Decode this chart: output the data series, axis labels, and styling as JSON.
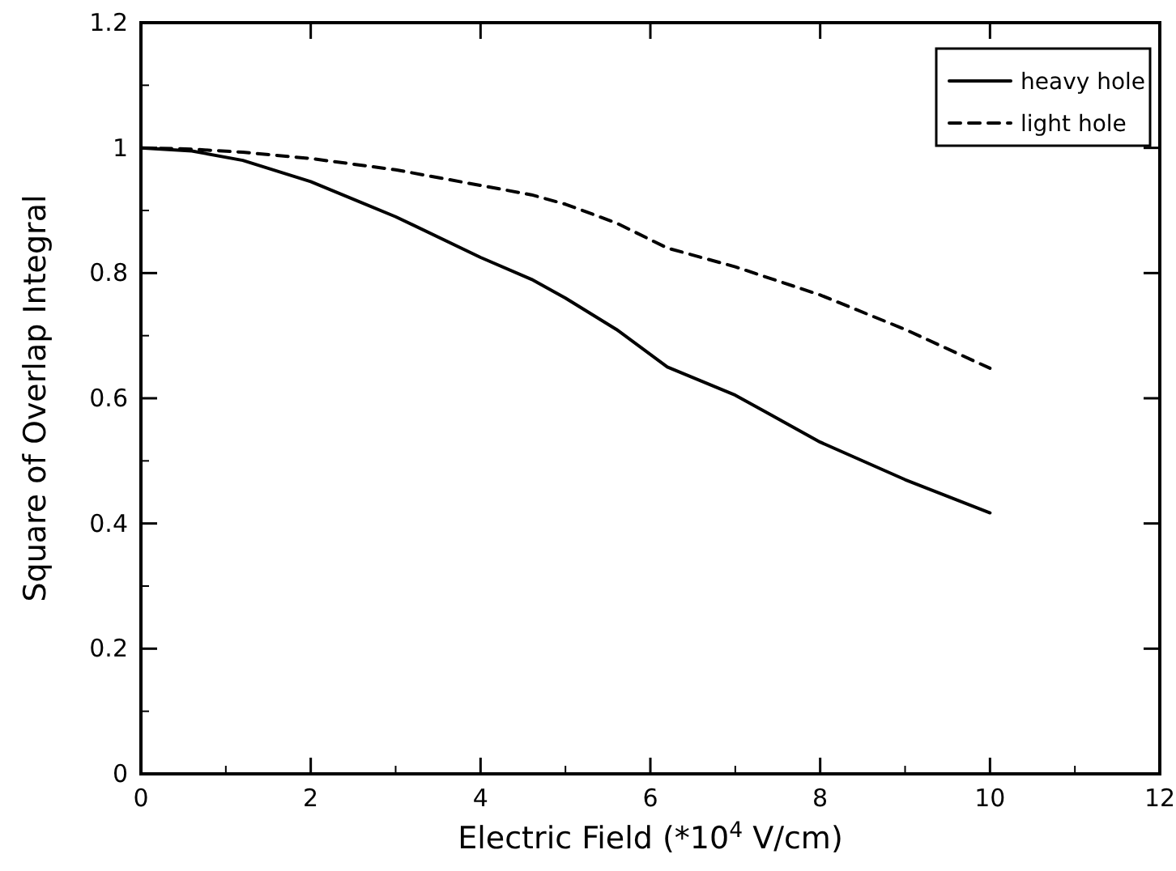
{
  "chart_data": {
    "type": "line",
    "xlabel": "Electric Field (*10$^{4}$ V/cm)",
    "ylabel": "Square of Overlap Integral",
    "xlim": [
      0,
      12
    ],
    "xticks": [
      0,
      2,
      4,
      6,
      8,
      10,
      12
    ],
    "ylim": [
      0,
      1.2
    ],
    "yticks": [
      0,
      0.2,
      0.4,
      0.6,
      0.8,
      1,
      1.2
    ],
    "x": [
      0,
      0.6,
      1.2,
      2,
      3,
      4,
      4.6,
      5,
      5.6,
      6.2,
      7,
      8,
      9,
      10
    ],
    "series": [
      {
        "name": "heavy hole",
        "color": "#000000",
        "line_style": "solid",
        "values": [
          1,
          0.995,
          0.98,
          0.946,
          0.89,
          0.825,
          0.79,
          0.76,
          0.71,
          0.65,
          0.605,
          0.53,
          0.47,
          0.417
        ]
      },
      {
        "name": "light hole",
        "color": "#000000",
        "line_style": "dashed",
        "values": [
          1,
          0.998,
          0.993,
          0.983,
          0.965,
          0.94,
          0.925,
          0.91,
          0.88,
          0.84,
          0.81,
          0.765,
          0.71,
          0.648
        ]
      }
    ],
    "legend": "top right",
    "grid": false
  }
}
